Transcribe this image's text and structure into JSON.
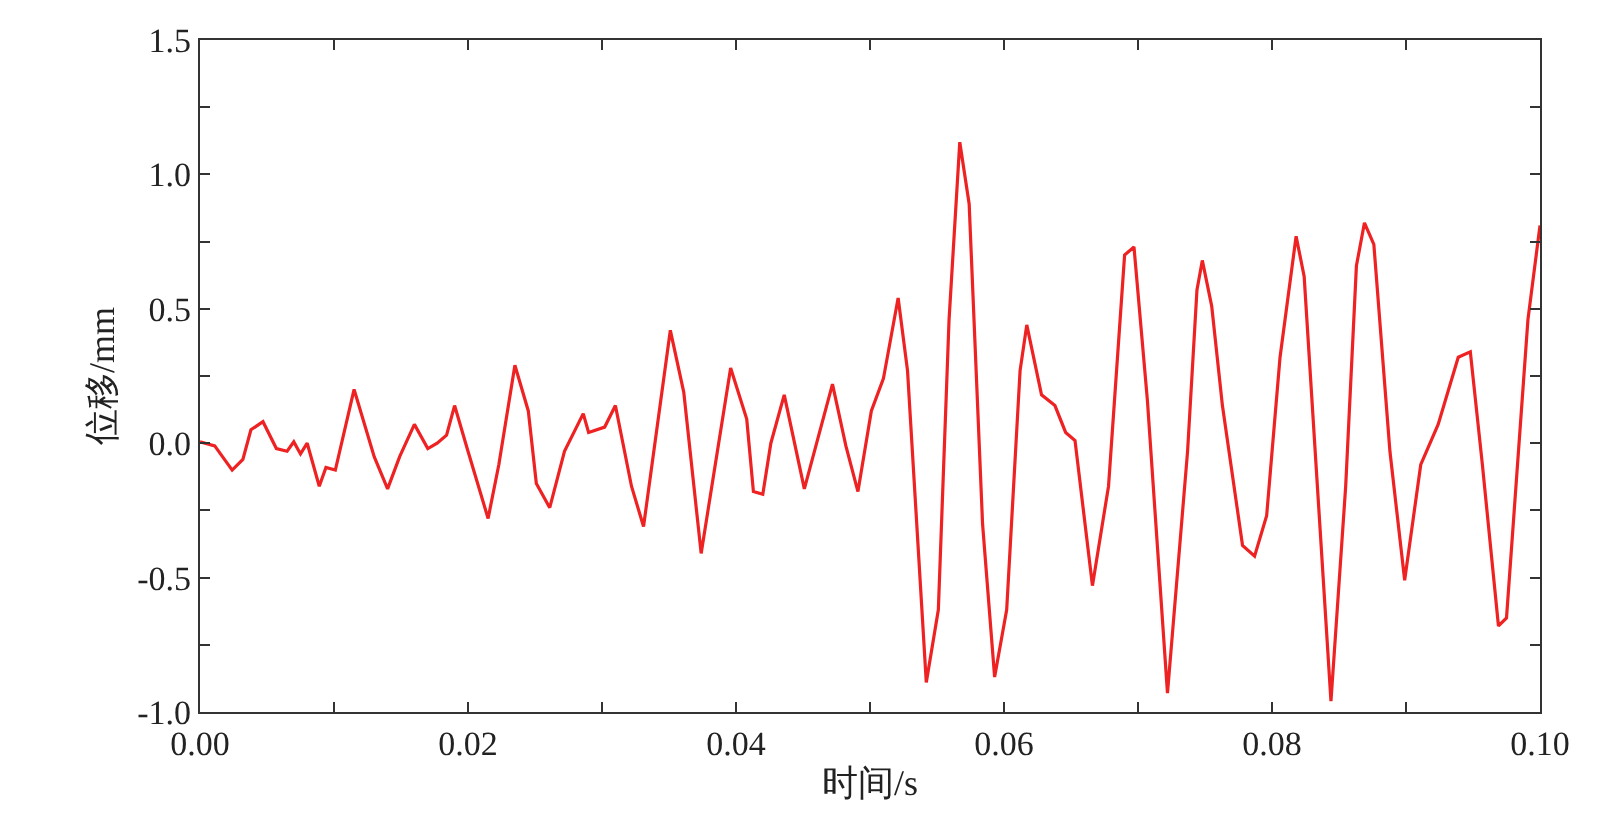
{
  "chart_data": {
    "type": "line",
    "xlabel": "时间/s",
    "ylabel": "位移/mm",
    "xlim": [
      0,
      0.1
    ],
    "ylim": [
      -1.0,
      1.5
    ],
    "xticks": [
      {
        "value": 0,
        "label": "0.00"
      },
      {
        "value": 0.01,
        "label": null
      },
      {
        "value": 0.02,
        "label": "0.02"
      },
      {
        "value": 0.03,
        "label": null
      },
      {
        "value": 0.04,
        "label": "0.04"
      },
      {
        "value": 0.05,
        "label": null
      },
      {
        "value": 0.06,
        "label": "0.06"
      },
      {
        "value": 0.07,
        "label": null
      },
      {
        "value": 0.08,
        "label": "0.08"
      },
      {
        "value": 0.09,
        "label": null
      },
      {
        "value": 0.1,
        "label": "0.10"
      }
    ],
    "yticks": [
      {
        "value": -1.0,
        "label": "-1.0"
      },
      {
        "value": -0.75,
        "label": null
      },
      {
        "value": -0.5,
        "label": "-0.5"
      },
      {
        "value": -0.25,
        "label": null
      },
      {
        "value": 0,
        "label": "0.0"
      },
      {
        "value": 0.25,
        "label": null
      },
      {
        "value": 0.5,
        "label": "0.5"
      },
      {
        "value": 0.75,
        "label": null
      },
      {
        "value": 1.0,
        "label": "1.0"
      },
      {
        "value": 1.25,
        "label": null
      },
      {
        "value": 1.5,
        "label": "1.5"
      }
    ],
    "marker": "none",
    "line_style": "solid",
    "series": [
      {
        "color": "#ee2222",
        "x": [
          0,
          0.0011,
          0.0024,
          0.0032,
          0.0038,
          0.0047,
          0.0057,
          0.0065,
          0.007,
          0.0075,
          0.008,
          0.0089,
          0.0094,
          0.0101,
          0.0115,
          0.013,
          0.014,
          0.0149,
          0.016,
          0.017,
          0.0177,
          0.0184,
          0.019,
          0.02,
          0.0215,
          0.0223,
          0.0235,
          0.0245,
          0.0251,
          0.0261,
          0.0272,
          0.0286,
          0.029,
          0.0302,
          0.031,
          0.0322,
          0.0331,
          0.0351,
          0.0361,
          0.0374,
          0.0396,
          0.0408,
          0.0413,
          0.042,
          0.0426,
          0.0436,
          0.0451,
          0.0472,
          0.0482,
          0.0491,
          0.0501,
          0.051,
          0.0521,
          0.0528,
          0.0542,
          0.0551,
          0.0559,
          0.0567,
          0.0574,
          0.0584,
          0.0593,
          0.0602,
          0.0612,
          0.0617,
          0.0628,
          0.0638,
          0.0646,
          0.0653,
          0.0666,
          0.0678,
          0.069,
          0.0697,
          0.0707,
          0.0722,
          0.0737,
          0.0744,
          0.0748,
          0.0755,
          0.0763,
          0.0778,
          0.0787,
          0.0796,
          0.0806,
          0.0818,
          0.0824,
          0.0844,
          0.0855,
          0.0863,
          0.0869,
          0.0876,
          0.0888,
          0.0899,
          0.0911,
          0.0924,
          0.0939,
          0.0948,
          0.0957,
          0.0969,
          0.0975,
          0.0991,
          0.1
        ],
        "values": [
          0.005,
          -0.01,
          -0.1,
          -0.06,
          0.05,
          0.08,
          -0.02,
          -0.03,
          0.005,
          -0.04,
          0,
          -0.16,
          -0.09,
          -0.1,
          0.2,
          -0.05,
          -0.17,
          -0.05,
          0.07,
          -0.02,
          0,
          0.03,
          0.14,
          -0.03,
          -0.28,
          -0.08,
          0.29,
          0.12,
          -0.15,
          -0.24,
          -0.03,
          0.11,
          0.04,
          0.06,
          0.14,
          -0.16,
          -0.31,
          0.42,
          0.19,
          -0.41,
          0.28,
          0.09,
          -0.18,
          -0.19,
          0,
          0.18,
          -0.17,
          0.22,
          -0.01,
          -0.18,
          0.12,
          0.24,
          0.54,
          0.27,
          -0.89,
          -0.62,
          0.46,
          1.12,
          0.89,
          -0.3,
          -0.87,
          -0.62,
          0.27,
          0.44,
          0.18,
          0.14,
          0.04,
          0.01,
          -0.53,
          -0.16,
          0.7,
          0.73,
          0.16,
          -0.93,
          -0.03,
          0.57,
          0.68,
          0.51,
          0.14,
          -0.38,
          -0.42,
          -0.27,
          0.32,
          0.77,
          0.62,
          -0.96,
          -0.16,
          0.66,
          0.82,
          0.74,
          -0.03,
          -0.51,
          -0.08,
          0.07,
          0.32,
          0.34,
          -0.08,
          -0.68,
          -0.65,
          0.46,
          0.81
        ]
      }
    ]
  }
}
